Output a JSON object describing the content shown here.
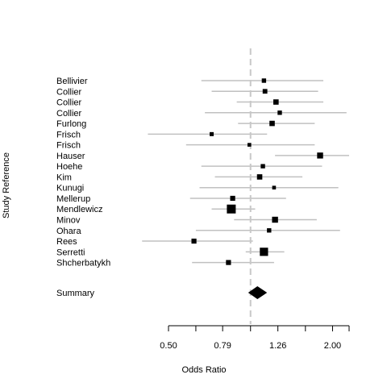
{
  "chart_data": {
    "type": "forest",
    "title": "",
    "xlabel": "Odds Ratio",
    "ylabel": "Study Reference",
    "x_scale": "log",
    "xlim": [
      0.5,
      2.3
    ],
    "x_ticks": [
      0.5,
      0.63,
      0.79,
      1.0,
      1.26,
      1.59,
      2.0,
      2.3
    ],
    "x_tick_labels": [
      "0.50",
      "",
      "0.79",
      "",
      "1.26",
      "",
      "2.00",
      ""
    ],
    "reference_line": 1.0,
    "studies": [
      {
        "name": "Bellivier",
        "or": 1.12,
        "lower": 0.66,
        "upper": 1.85,
        "weight": 0.3
      },
      {
        "name": "Collier",
        "or": 1.13,
        "lower": 0.72,
        "upper": 1.77,
        "weight": 0.35
      },
      {
        "name": "Collier",
        "or": 1.24,
        "lower": 0.89,
        "upper": 1.85,
        "weight": 0.45
      },
      {
        "name": "Collier",
        "or": 1.28,
        "lower": 0.68,
        "upper": 2.25,
        "weight": 0.3
      },
      {
        "name": "Furlong",
        "or": 1.2,
        "lower": 0.9,
        "upper": 1.72,
        "weight": 0.45
      },
      {
        "name": "Frisch",
        "or": 0.72,
        "lower": 0.42,
        "upper": 1.15,
        "weight": 0.25
      },
      {
        "name": "Frisch",
        "or": 0.99,
        "lower": 0.58,
        "upper": 1.72,
        "weight": 0.2
      },
      {
        "name": "Hauser",
        "or": 1.8,
        "lower": 1.23,
        "upper": 2.3,
        "weight": 0.55
      },
      {
        "name": "Hoehe",
        "or": 1.11,
        "lower": 0.66,
        "upper": 1.83,
        "weight": 0.3
      },
      {
        "name": "Kim",
        "or": 1.08,
        "lower": 0.74,
        "upper": 1.55,
        "weight": 0.45
      },
      {
        "name": "Kunugi",
        "or": 1.22,
        "lower": 0.65,
        "upper": 2.1,
        "weight": 0.2
      },
      {
        "name": "Mellerup",
        "or": 0.86,
        "lower": 0.6,
        "upper": 1.35,
        "weight": 0.4
      },
      {
        "name": "Mendlewicz",
        "or": 0.85,
        "lower": 0.72,
        "upper": 1.04,
        "weight": 1.0
      },
      {
        "name": "Minov",
        "or": 1.23,
        "lower": 0.87,
        "upper": 1.75,
        "weight": 0.55
      },
      {
        "name": "Ohara",
        "or": 1.17,
        "lower": 0.63,
        "upper": 2.13,
        "weight": 0.3
      },
      {
        "name": "Rees",
        "or": 0.62,
        "lower": 0.4,
        "upper": 1.02,
        "weight": 0.4
      },
      {
        "name": "Serretti",
        "or": 1.12,
        "lower": 0.96,
        "upper": 1.33,
        "weight": 0.9
      },
      {
        "name": "Shcherbatykh",
        "or": 0.83,
        "lower": 0.61,
        "upper": 1.22,
        "weight": 0.4
      }
    ],
    "summary": {
      "name": "Summary",
      "or": 1.06,
      "lower": 0.98,
      "upper": 1.15
    },
    "colors": {
      "ci_line": "#c0c0c0",
      "reference_line": "#c8c8c8",
      "marker": "#000000"
    }
  }
}
